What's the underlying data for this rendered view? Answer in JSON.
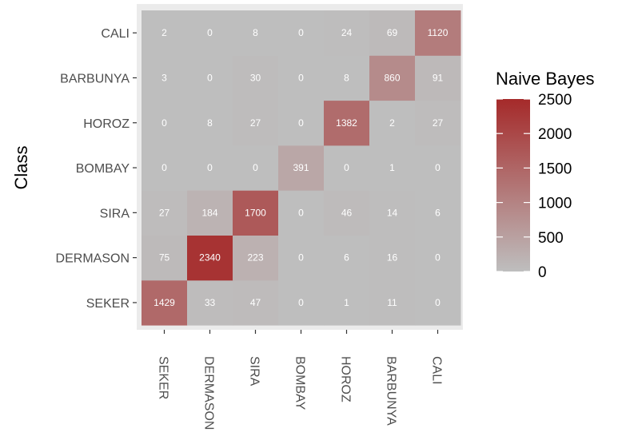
{
  "chart_data": {
    "type": "heatmap",
    "title": "",
    "xlabel": "",
    "ylabel": "Class",
    "x_categories": [
      "SEKER",
      "DERMASON",
      "SIRA",
      "BOMBAY",
      "HOROZ",
      "BARBUNYA",
      "CALI"
    ],
    "y_categories": [
      "SEKER",
      "DERMASON",
      "SIRA",
      "BOMBAY",
      "HOROZ",
      "BARBUNYA",
      "CALI"
    ],
    "matrix": [
      [
        1429,
        33,
        47,
        0,
        1,
        11,
        0
      ],
      [
        75,
        2340,
        223,
        0,
        6,
        16,
        0
      ],
      [
        27,
        184,
        1700,
        0,
        46,
        14,
        6
      ],
      [
        0,
        0,
        0,
        391,
        0,
        1,
        0
      ],
      [
        0,
        8,
        27,
        0,
        1382,
        2,
        27
      ],
      [
        3,
        0,
        30,
        0,
        8,
        860,
        91
      ],
      [
        2,
        0,
        8,
        0,
        24,
        69,
        1120
      ]
    ],
    "legend": {
      "title": "Naive Bayes",
      "min": 0,
      "max": 2500,
      "breaks": [
        0,
        500,
        1000,
        1500,
        2000,
        2500
      ],
      "low_color": "#bebebe",
      "high_color": "#a52a2a",
      "placement": "right"
    },
    "panel_background": "#ebebeb",
    "cell_label_color": "#ffffff",
    "axis_text_color": "#4d4d4d",
    "x_tick_rotation": "vertical"
  }
}
